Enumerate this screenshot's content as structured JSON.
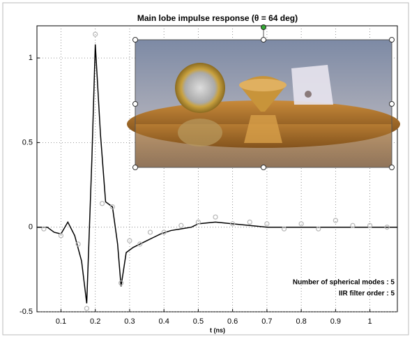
{
  "chart_data": {
    "type": "line",
    "title": "Main lobe impulse response (θ = 64 deg)",
    "x_label": "t (ns)",
    "annotations": [
      "Number of spherical modes : 5",
      "IIR filter order : 5"
    ],
    "xlim": [
      0.03,
      1.08
    ],
    "ylim": [
      -0.5,
      1.19
    ],
    "xticks": [
      0.1,
      0.2,
      0.3,
      0.4,
      0.5,
      0.6,
      0.7,
      0.8,
      0.9,
      1
    ],
    "yticks": [
      -0.5,
      0,
      0.5,
      1
    ],
    "grid": true,
    "series": [
      {
        "color": "#000000",
        "marker": "none",
        "x": [
          0.03,
          0.06,
          0.08,
          0.1,
          0.12,
          0.14,
          0.16,
          0.175,
          0.19,
          0.2,
          0.215,
          0.23,
          0.25,
          0.265,
          0.275,
          0.29,
          0.31,
          0.33,
          0.35,
          0.37,
          0.39,
          0.42,
          0.45,
          0.48,
          0.5,
          0.55,
          0.6,
          0.65,
          0.7,
          0.8,
          0.9,
          1,
          1.08
        ],
        "values": [
          0,
          0,
          -0.03,
          -0.04,
          0.03,
          -0.05,
          -0.2,
          -0.45,
          0.4,
          1.08,
          0.55,
          0.15,
          0.12,
          -0.1,
          -0.35,
          -0.15,
          -0.12,
          -0.1,
          -0.08,
          -0.06,
          -0.04,
          -0.02,
          -0.01,
          0,
          0.02,
          0.03,
          0.02,
          0.01,
          0,
          0,
          0,
          0,
          0
        ]
      },
      {
        "color": "#bbbbbb",
        "marker": "circle",
        "x": [
          0.05,
          0.1,
          0.15,
          0.175,
          0.2,
          0.22,
          0.25,
          0.275,
          0.3,
          0.33,
          0.36,
          0.4,
          0.45,
          0.5,
          0.55,
          0.6,
          0.65,
          0.7,
          0.75,
          0.8,
          0.85,
          0.9,
          0.95,
          1,
          1.05
        ],
        "values": [
          -0.01,
          -0.05,
          -0.1,
          -0.48,
          1.14,
          0.14,
          0.12,
          -0.33,
          -0.08,
          -0.1,
          -0.03,
          -0.03,
          0.01,
          0.03,
          0.06,
          0.02,
          0.03,
          0.02,
          -0.01,
          0.02,
          -0.01,
          0.04,
          0.01,
          0.01,
          0
        ]
      }
    ]
  }
}
